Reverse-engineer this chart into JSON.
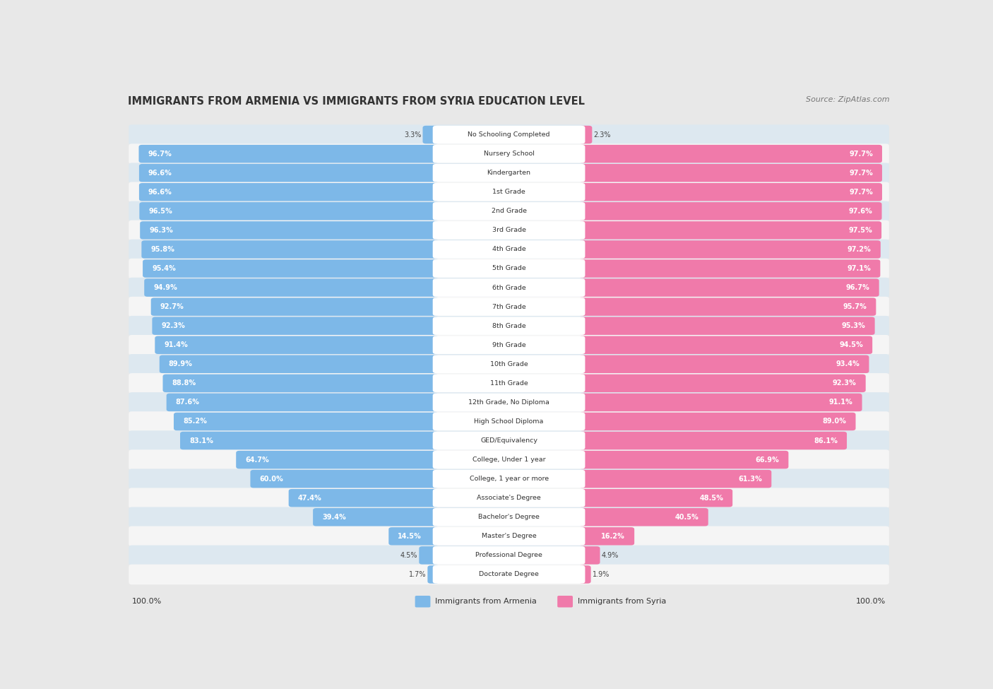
{
  "title": "IMMIGRANTS FROM ARMENIA VS IMMIGRANTS FROM SYRIA EDUCATION LEVEL",
  "source": "Source: ZipAtlas.com",
  "categories": [
    "No Schooling Completed",
    "Nursery School",
    "Kindergarten",
    "1st Grade",
    "2nd Grade",
    "3rd Grade",
    "4th Grade",
    "5th Grade",
    "6th Grade",
    "7th Grade",
    "8th Grade",
    "9th Grade",
    "10th Grade",
    "11th Grade",
    "12th Grade, No Diploma",
    "High School Diploma",
    "GED/Equivalency",
    "College, Under 1 year",
    "College, 1 year or more",
    "Associate's Degree",
    "Bachelor's Degree",
    "Master's Degree",
    "Professional Degree",
    "Doctorate Degree"
  ],
  "armenia_values": [
    3.3,
    96.7,
    96.6,
    96.6,
    96.5,
    96.3,
    95.8,
    95.4,
    94.9,
    92.7,
    92.3,
    91.4,
    89.9,
    88.8,
    87.6,
    85.2,
    83.1,
    64.7,
    60.0,
    47.4,
    39.4,
    14.5,
    4.5,
    1.7
  ],
  "syria_values": [
    2.3,
    97.7,
    97.7,
    97.7,
    97.6,
    97.5,
    97.2,
    97.1,
    96.7,
    95.7,
    95.3,
    94.5,
    93.4,
    92.3,
    91.1,
    89.0,
    86.1,
    66.9,
    61.3,
    48.5,
    40.5,
    16.2,
    4.9,
    1.9
  ],
  "armenia_color": "#7db8e8",
  "syria_color": "#f07aaa",
  "background_color": "#e8e8e8",
  "row_bg_even": "#dde8f0",
  "row_bg_odd": "#f5f5f5",
  "label_color_white": "#ffffff",
  "label_color_dark": "#444444",
  "legend_armenia": "Immigrants from Armenia",
  "legend_syria": "Immigrants from Syria",
  "white_label_threshold": 10.0
}
